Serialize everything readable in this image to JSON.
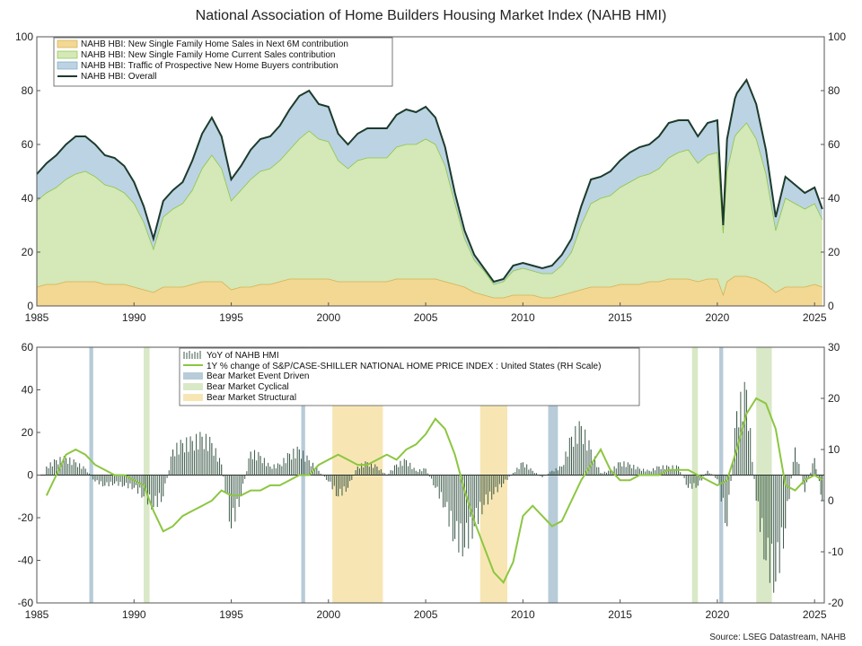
{
  "title": "National Association of Home Builders Housing Market Index (NAHB HMI)",
  "source": "Source: LSEG Datastream, NAHB",
  "colors": {
    "future": "#f2d893",
    "current": "#d4e8b8",
    "traffic": "#bcd3e3",
    "overall": "#1c3b2c",
    "yoy": "#3c5a4a",
    "caseshiller": "#8cc641",
    "event": "#b7cbd8",
    "cyclical": "#d9e8c6",
    "structural": "#f7e6b4"
  },
  "chart_data": [
    {
      "type": "area",
      "name": "top-panel",
      "title": "National Association of Home Builders Housing Market Index (NAHB HMI)",
      "xlim": [
        1985,
        2025.5
      ],
      "ylim": [
        0,
        100
      ],
      "y_ticks": [
        "0",
        "20",
        "40",
        "60",
        "80",
        "100"
      ],
      "y2_ticks": [
        "0",
        "20",
        "40",
        "60",
        "80",
        "100"
      ],
      "x_ticks": [
        "1985",
        "1990",
        "1995",
        "2000",
        "2005",
        "2010",
        "2015",
        "2020",
        "2025"
      ],
      "grid": false,
      "legend_position": "top-left",
      "x": [
        1985.0,
        1985.5,
        1986.0,
        1986.5,
        1987.0,
        1987.5,
        1988.0,
        1988.5,
        1989.0,
        1989.5,
        1990.0,
        1990.5,
        1991.0,
        1991.5,
        1992.0,
        1992.5,
        1993.0,
        1993.5,
        1994.0,
        1994.5,
        1995.0,
        1995.5,
        1996.0,
        1996.5,
        1997.0,
        1997.5,
        1998.0,
        1998.5,
        1999.0,
        1999.5,
        2000.0,
        2000.5,
        2001.0,
        2001.5,
        2002.0,
        2002.5,
        2003.0,
        2003.5,
        2004.0,
        2004.5,
        2005.0,
        2005.5,
        2006.0,
        2006.5,
        2007.0,
        2007.5,
        2008.0,
        2008.5,
        2009.0,
        2009.5,
        2010.0,
        2010.5,
        2011.0,
        2011.5,
        2012.0,
        2012.5,
        2013.0,
        2013.5,
        2014.0,
        2014.5,
        2015.0,
        2015.5,
        2016.0,
        2016.5,
        2017.0,
        2017.5,
        2018.0,
        2018.5,
        2019.0,
        2019.5,
        2020.0,
        2020.3,
        2020.5,
        2020.9,
        2021.0,
        2021.5,
        2022.0,
        2022.5,
        2023.0,
        2023.5,
        2024.0,
        2024.5,
        2025.0,
        2025.4
      ],
      "series": [
        {
          "name": "NAHB HBI: New Single Family Home Sales in Next 6M contribution",
          "values": [
            7,
            8,
            8,
            9,
            9,
            9,
            9,
            8,
            8,
            8,
            7,
            6,
            5,
            7,
            7,
            7,
            8,
            9,
            9,
            9,
            6,
            7,
            7,
            8,
            8,
            9,
            10,
            10,
            10,
            10,
            10,
            9,
            9,
            9,
            9,
            9,
            9,
            10,
            10,
            10,
            10,
            10,
            9,
            8,
            7,
            5,
            4,
            3,
            3,
            4,
            4,
            4,
            3,
            3,
            4,
            5,
            6,
            7,
            7,
            7,
            8,
            8,
            8,
            9,
            9,
            10,
            10,
            10,
            9,
            10,
            10,
            4,
            9,
            11,
            11,
            11,
            10,
            8,
            5,
            7,
            7,
            7,
            8,
            7
          ]
        },
        {
          "name": "NAHB HBI: New Single Family Home Current Sales contribution",
          "values": [
            32,
            34,
            36,
            38,
            40,
            41,
            39,
            37,
            36,
            34,
            31,
            25,
            16,
            26,
            29,
            31,
            35,
            42,
            47,
            42,
            33,
            36,
            40,
            42,
            43,
            45,
            48,
            52,
            55,
            52,
            51,
            45,
            42,
            45,
            46,
            46,
            46,
            49,
            50,
            50,
            52,
            50,
            43,
            30,
            18,
            12,
            9,
            5,
            6,
            9,
            10,
            9,
            9,
            9,
            11,
            15,
            24,
            31,
            33,
            34,
            36,
            38,
            40,
            40,
            42,
            45,
            47,
            48,
            44,
            46,
            47,
            23,
            41,
            52,
            53,
            57,
            52,
            41,
            23,
            33,
            31,
            29,
            30,
            25
          ]
        },
        {
          "name": "NAHB HBI: Traffic of Prospective New Home Buyers contribution",
          "values": [
            10,
            11,
            12,
            13,
            14,
            13,
            12,
            11,
            11,
            10,
            8,
            6,
            4,
            6,
            7,
            8,
            11,
            13,
            14,
            12,
            8,
            9,
            11,
            12,
            12,
            13,
            15,
            16,
            15,
            13,
            13,
            10,
            9,
            10,
            11,
            11,
            11,
            12,
            13,
            12,
            12,
            10,
            7,
            4,
            3,
            2,
            1,
            1,
            1,
            2,
            2,
            2,
            2,
            3,
            4,
            5,
            7,
            9,
            8,
            9,
            10,
            11,
            11,
            11,
            12,
            13,
            12,
            11,
            10,
            12,
            12,
            3,
            12,
            14,
            15,
            16,
            13,
            9,
            5,
            8,
            7,
            6,
            6,
            4
          ]
        },
        {
          "name": "NAHB HBI: Overall",
          "values": [
            49,
            53,
            56,
            60,
            63,
            63,
            60,
            56,
            55,
            52,
            46,
            37,
            25,
            39,
            43,
            46,
            54,
            64,
            70,
            63,
            47,
            52,
            58,
            62,
            63,
            67,
            73,
            78,
            80,
            75,
            74,
            64,
            60,
            64,
            66,
            66,
            66,
            71,
            73,
            72,
            74,
            70,
            59,
            42,
            28,
            19,
            14,
            9,
            10,
            15,
            16,
            15,
            14,
            15,
            19,
            25,
            37,
            47,
            48,
            50,
            54,
            57,
            59,
            60,
            63,
            68,
            69,
            69,
            63,
            68,
            69,
            30,
            62,
            77,
            79,
            84,
            75,
            58,
            33,
            48,
            45,
            42,
            44,
            36
          ]
        }
      ]
    },
    {
      "type": "bar",
      "name": "bottom-panel",
      "xlim": [
        1985,
        2025.5
      ],
      "ylim": [
        -60,
        60
      ],
      "y2lim": [
        -20,
        30
      ],
      "y_ticks": [
        "-60",
        "-40",
        "-20",
        "0",
        "20",
        "40",
        "60"
      ],
      "y2_ticks": [
        "-20",
        "-10",
        "0",
        "10",
        "20",
        "30"
      ],
      "x_ticks": [
        "1985",
        "1990",
        "1995",
        "2000",
        "2005",
        "2010",
        "2015",
        "2020",
        "2025"
      ],
      "grid": false,
      "legend_position": "top-center",
      "x": [
        1985.5,
        1986.0,
        1986.5,
        1987.0,
        1987.5,
        1988.0,
        1988.5,
        1989.0,
        1989.5,
        1990.0,
        1990.5,
        1991.0,
        1991.5,
        1992.0,
        1992.5,
        1993.0,
        1993.5,
        1994.0,
        1994.5,
        1995.0,
        1995.5,
        1996.0,
        1996.5,
        1997.0,
        1997.5,
        1998.0,
        1998.5,
        1999.0,
        1999.5,
        2000.0,
        2000.5,
        2001.0,
        2001.5,
        2002.0,
        2002.5,
        2003.0,
        2003.5,
        2004.0,
        2004.5,
        2005.0,
        2005.5,
        2006.0,
        2006.5,
        2007.0,
        2007.5,
        2008.0,
        2008.5,
        2009.0,
        2009.5,
        2010.0,
        2010.5,
        2011.0,
        2011.5,
        2012.0,
        2012.5,
        2013.0,
        2013.5,
        2014.0,
        2014.5,
        2015.0,
        2015.5,
        2016.0,
        2016.5,
        2017.0,
        2017.5,
        2018.0,
        2018.5,
        2019.0,
        2019.5,
        2020.0,
        2020.5,
        2021.0,
        2021.5,
        2022.0,
        2022.5,
        2023.0,
        2023.5,
        2024.0,
        2024.5,
        2025.0,
        2025.4
      ],
      "series": [
        {
          "name": "YoY of NAHB HMI",
          "values": [
            4,
            7,
            8,
            6,
            3,
            -3,
            -5,
            -4,
            -5,
            -6,
            -10,
            -15,
            -10,
            12,
            15,
            16,
            18,
            15,
            5,
            -25,
            -10,
            11,
            9,
            4,
            5,
            10,
            12,
            7,
            2,
            -3,
            -10,
            -6,
            4,
            6,
            4,
            0,
            5,
            7,
            2,
            3,
            -6,
            -15,
            -30,
            -34,
            -24,
            -14,
            -9,
            -4,
            1,
            6,
            2,
            -1,
            2,
            4,
            18,
            23,
            12,
            1,
            2,
            6,
            5,
            3,
            2,
            4,
            4,
            4,
            -6,
            -5,
            2,
            -2,
            -24,
            30,
            40,
            -12,
            -40,
            -50,
            -25,
            13,
            -8,
            8,
            -12
          ]
        },
        {
          "name": "1Y % change of S&P/CASE-SHILLER NATIONAL HOME PRICE INDEX : United States (RH Scale)",
          "values": [
            1,
            5,
            9,
            10,
            9,
            7,
            6,
            5,
            5,
            4,
            3,
            -2,
            -6,
            -5,
            -3,
            -2,
            -1,
            0,
            2,
            1,
            1,
            2,
            2,
            3,
            3,
            4,
            5,
            5,
            7,
            8,
            9,
            8,
            7,
            7,
            8,
            9,
            8,
            10,
            11,
            13,
            16,
            14,
            9,
            2,
            -4,
            -9,
            -14,
            -16,
            -12,
            -3,
            -1,
            -3,
            -5,
            -4,
            0,
            4,
            7,
            10,
            6,
            4,
            4,
            5,
            5,
            5,
            6,
            6,
            6,
            5,
            4,
            3,
            4,
            10,
            17,
            20,
            19,
            14,
            3,
            2,
            4,
            5,
            4
          ]
        }
      ],
      "bands": [
        {
          "name": "Bear Market Event Driven",
          "ranges": [
            [
              1987.7,
              1987.9
            ],
            [
              1998.6,
              1998.8
            ],
            [
              2011.3,
              2011.8
            ],
            [
              2020.1,
              2020.3
            ]
          ]
        },
        {
          "name": "Bear Market Cyclical",
          "ranges": [
            [
              1990.5,
              1990.8
            ],
            [
              2018.7,
              2019.0
            ],
            [
              2022.0,
              2022.8
            ]
          ]
        },
        {
          "name": "Bear Market Structural",
          "ranges": [
            [
              2000.2,
              2002.8
            ],
            [
              2007.8,
              2009.2
            ]
          ]
        }
      ]
    }
  ]
}
